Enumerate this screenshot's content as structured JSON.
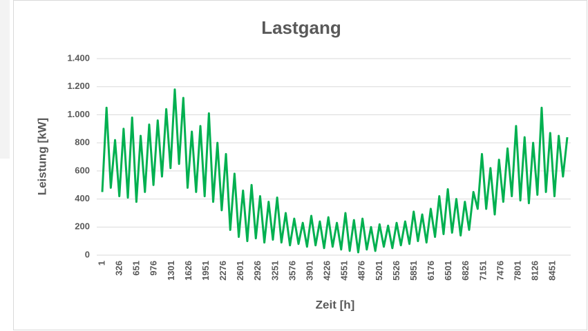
{
  "chart_data": {
    "type": "line",
    "title": "Lastgang",
    "ylabel": "Leistung [kW]",
    "xlabel": "Zeit [h]",
    "color": "#00b050",
    "grid": true,
    "xlim": [
      1,
      8760
    ],
    "xticks": [
      1,
      326,
      651,
      976,
      1301,
      1626,
      1951,
      2276,
      2601,
      2926,
      3251,
      3576,
      3901,
      4226,
      4551,
      4876,
      5201,
      5526,
      5851,
      6176,
      6501,
      6826,
      7151,
      7476,
      7801,
      8126,
      8451
    ],
    "ylim": [
      0,
      1400
    ],
    "yticks": [
      0,
      200,
      400,
      600,
      800,
      {
        "value": 1000,
        "label": "1.000"
      },
      {
        "value": 1200,
        "label": "1.200"
      },
      {
        "value": 1400,
        "label": "1.400"
      }
    ],
    "x": [
      1,
      81,
      161,
      241,
      321,
      401,
      481,
      561,
      641,
      721,
      801,
      881,
      961,
      1041,
      1121,
      1201,
      1281,
      1361,
      1441,
      1521,
      1601,
      1681,
      1761,
      1841,
      1921,
      2001,
      2081,
      2161,
      2241,
      2321,
      2401,
      2481,
      2561,
      2641,
      2721,
      2801,
      2881,
      2961,
      3041,
      3121,
      3201,
      3281,
      3361,
      3441,
      3521,
      3601,
      3681,
      3761,
      3841,
      3921,
      4001,
      4081,
      4161,
      4241,
      4321,
      4401,
      4481,
      4561,
      4641,
      4721,
      4801,
      4881,
      4961,
      5041,
      5121,
      5201,
      5281,
      5361,
      5441,
      5521,
      5601,
      5681,
      5761,
      5841,
      5921,
      6001,
      6081,
      6161,
      6241,
      6321,
      6401,
      6481,
      6561,
      6641,
      6721,
      6801,
      6881,
      6961,
      7041,
      7121,
      7201,
      7281,
      7361,
      7441,
      7521,
      7601,
      7681,
      7761,
      7841,
      7921,
      8001,
      8081,
      8161,
      8241,
      8321,
      8401,
      8481,
      8561,
      8641,
      8721
    ],
    "values": [
      450,
      1050,
      480,
      820,
      420,
      900,
      410,
      980,
      380,
      850,
      450,
      930,
      500,
      960,
      560,
      1040,
      620,
      1180,
      650,
      1120,
      480,
      880,
      450,
      920,
      420,
      1010,
      380,
      800,
      320,
      720,
      180,
      580,
      130,
      460,
      100,
      500,
      120,
      420,
      90,
      380,
      110,
      410,
      90,
      300,
      70,
      260,
      80,
      230,
      60,
      280,
      70,
      240,
      50,
      270,
      60,
      230,
      40,
      300,
      30,
      250,
      20,
      260,
      40,
      200,
      30,
      220,
      60,
      210,
      50,
      230,
      70,
      240,
      80,
      310,
      100,
      290,
      90,
      330,
      130,
      420,
      150,
      470,
      160,
      400,
      140,
      380,
      180,
      450,
      330,
      720,
      330,
      620,
      290,
      680,
      380,
      760,
      420,
      920,
      390,
      840,
      370,
      800,
      430,
      1050,
      450,
      870,
      420,
      850,
      560,
      840
    ]
  }
}
